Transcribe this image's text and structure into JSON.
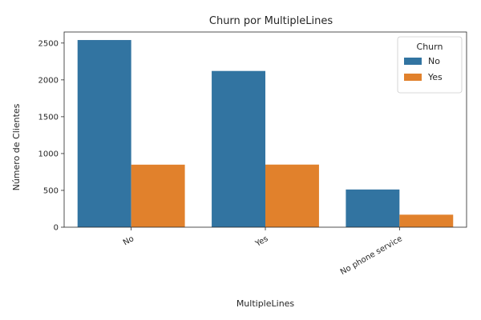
{
  "chart_data": {
    "type": "bar",
    "title": "Churn por MultipleLines",
    "xlabel": "MultipleLines",
    "ylabel": "Número de Clientes",
    "categories": [
      "No",
      "Yes",
      "No phone service"
    ],
    "series": [
      {
        "name": "No",
        "color": "#3274a1",
        "values": [
          2541,
          2121,
          512
        ]
      },
      {
        "name": "Yes",
        "color": "#e1812c",
        "values": [
          849,
          850,
          170
        ]
      }
    ],
    "ylim": [
      0,
      2650
    ],
    "yticks": [
      0,
      500,
      1000,
      1500,
      2000,
      2500
    ],
    "legend": {
      "title": "Churn",
      "placement": "top-right"
    },
    "grid": false
  }
}
